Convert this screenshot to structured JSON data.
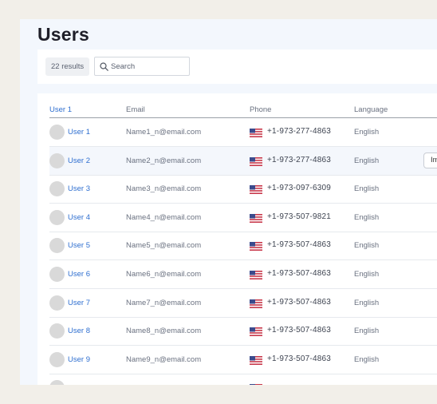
{
  "page": {
    "title": "Users"
  },
  "toolbar": {
    "results_label": "22 results",
    "search_placeholder": "Search"
  },
  "table": {
    "columns": {
      "user": "User 1",
      "email": "Email",
      "phone": "Phone",
      "language": "Language"
    },
    "rows": [
      {
        "user": "User 1",
        "email": "Name1_n@email.com",
        "phone": "+1-973-277-4863",
        "language": "English",
        "flag_icon": "us-flag-icon"
      },
      {
        "user": "User 2",
        "email": "Name2_n@email.com",
        "phone": "+1-973-277-4863",
        "language": "English",
        "flag_icon": "us-flag-icon",
        "action_label": "Im",
        "highlighted": true
      },
      {
        "user": "User 3",
        "email": "Name3_n@email.com",
        "phone": "+1-973-097-6309",
        "language": "English",
        "flag_icon": "us-flag-icon"
      },
      {
        "user": "User 4",
        "email": "Name4_n@email.com",
        "phone": "+1-973-507-9821",
        "language": "English",
        "flag_icon": "us-flag-icon"
      },
      {
        "user": "User 5",
        "email": "Name5_n@email.com",
        "phone": "+1-973-507-4863",
        "language": "English",
        "flag_icon": "us-flag-icon"
      },
      {
        "user": "User 6",
        "email": "Name6_n@email.com",
        "phone": "+1-973-507-4863",
        "language": "English",
        "flag_icon": "us-flag-icon"
      },
      {
        "user": "User 7",
        "email": "Name7_n@email.com",
        "phone": "+1-973-507-4863",
        "language": "English",
        "flag_icon": "us-flag-icon"
      },
      {
        "user": "User 8",
        "email": "Name8_n@email.com",
        "phone": "+1-973-507-4863",
        "language": "English",
        "flag_icon": "us-flag-icon"
      },
      {
        "user": "User 9",
        "email": "Name9_n@email.com",
        "phone": "+1-973-507-4863",
        "language": "English",
        "flag_icon": "us-flag-icon"
      },
      {
        "user": "",
        "email": "",
        "phone": "",
        "language": "",
        "flag_icon": "us-flag-icon"
      }
    ]
  },
  "colors": {
    "link": "#2f6fd0",
    "panel_bg": "#f3f7fd",
    "page_bg": "#f2efe9"
  }
}
